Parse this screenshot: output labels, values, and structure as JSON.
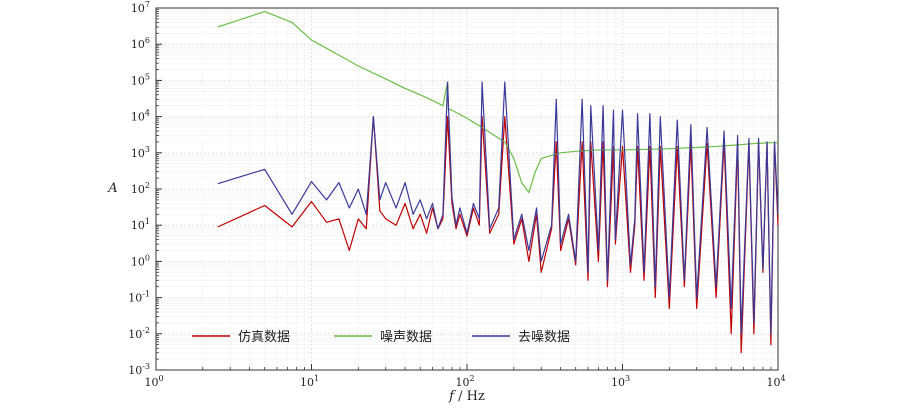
{
  "chart_data": {
    "type": "line",
    "title": "",
    "xlabel": "f",
    "xlabel_unit": " / Hz",
    "ylabel": "A",
    "x_scale": "log",
    "y_scale": "log",
    "xlim": [
      1,
      10000
    ],
    "ylim": [
      0.001,
      10000000
    ],
    "grid": true,
    "legend_position": "bottom-left",
    "x_ticks": [
      {
        "value": 1,
        "base": "10",
        "exp": "0"
      },
      {
        "value": 10,
        "base": "10",
        "exp": "1"
      },
      {
        "value": 100,
        "base": "10",
        "exp": "2"
      },
      {
        "value": 1000,
        "base": "10",
        "exp": "3"
      },
      {
        "value": 10000,
        "base": "10",
        "exp": "4"
      }
    ],
    "y_ticks": [
      {
        "value": 0.001,
        "base": "10",
        "exp": "-3"
      },
      {
        "value": 0.01,
        "base": "10",
        "exp": "-2"
      },
      {
        "value": 0.1,
        "base": "10",
        "exp": "-1"
      },
      {
        "value": 1,
        "base": "10",
        "exp": "0"
      },
      {
        "value": 10,
        "base": "10",
        "exp": "1"
      },
      {
        "value": 100,
        "base": "10",
        "exp": "2"
      },
      {
        "value": 1000,
        "base": "10",
        "exp": "3"
      },
      {
        "value": 10000,
        "base": "10",
        "exp": "4"
      },
      {
        "value": 100000,
        "base": "10",
        "exp": "5"
      },
      {
        "value": 1000000,
        "base": "10",
        "exp": "6"
      },
      {
        "value": 10000000,
        "base": "10",
        "exp": "7"
      }
    ],
    "series": [
      {
        "name": "仿真数据",
        "color": "#c00000",
        "x": [
          2.5,
          5,
          7.5,
          10,
          12.5,
          15,
          17.5,
          20,
          22.5,
          25,
          27.5,
          30,
          35,
          40,
          45,
          50,
          55,
          60,
          65,
          70,
          75,
          80,
          85,
          90,
          100,
          110,
          120,
          125,
          140,
          160,
          175,
          200,
          225,
          250,
          280,
          300,
          350,
          375,
          400,
          450,
          500,
          550,
          600,
          625,
          700,
          750,
          800,
          875,
          900,
          1000,
          1125,
          1200,
          1250,
          1375,
          1500,
          1625,
          1750,
          2000,
          2250,
          2500,
          2750,
          3000,
          3500,
          4000,
          4500,
          5000,
          5500,
          5800,
          6500,
          7000,
          7500,
          8000,
          8500,
          9000,
          9500,
          10000
        ],
        "y": [
          9,
          35,
          9,
          45,
          12,
          15,
          2,
          15,
          8,
          10000,
          25,
          15,
          10,
          40,
          8,
          20,
          6,
          30,
          8,
          15,
          10000,
          40,
          8,
          20,
          5,
          30,
          10,
          10000,
          6,
          20,
          10000,
          3,
          15,
          1,
          20,
          0.5,
          8,
          2000,
          2,
          15,
          0.8,
          2000,
          0.3,
          2000,
          1,
          2000,
          0.2,
          1500,
          3,
          1500,
          0.5,
          10,
          1500,
          0.3,
          1500,
          0.1,
          1500,
          0.05,
          1500,
          0.2,
          1800,
          0.05,
          1800,
          0.1,
          2000,
          0.01,
          1800,
          0.003,
          1800,
          0.01,
          2000,
          0.5,
          1800,
          0.005,
          1800,
          10
        ]
      },
      {
        "name": "噪声数据",
        "color": "#6abf45",
        "x": [
          2.5,
          5,
          7.5,
          10,
          15,
          20,
          30,
          40,
          50,
          60,
          70,
          75,
          76,
          80,
          100,
          125,
          150,
          175,
          200,
          225,
          250,
          275,
          300,
          400,
          500,
          700,
          1000,
          1500,
          2000,
          3000,
          4000,
          5000,
          6000,
          7000,
          8000,
          9000,
          10000
        ],
        "y": [
          3000000,
          8000000,
          4000000,
          1300000,
          500000,
          250000,
          110000,
          60000,
          40000,
          28000,
          20000,
          90000,
          16000,
          15000,
          9000,
          5000,
          3000,
          2000,
          700,
          150,
          80,
          300,
          700,
          1000,
          1100,
          1200,
          1200,
          1250,
          1300,
          1400,
          1500,
          1600,
          1700,
          1800,
          1850,
          1900,
          1900
        ]
      },
      {
        "name": "去噪数据",
        "color": "#3a3a9a",
        "x": [
          2.5,
          5,
          7.5,
          10,
          12.5,
          15,
          17.5,
          20,
          22.5,
          25,
          27.5,
          30,
          35,
          40,
          45,
          50,
          55,
          60,
          65,
          70,
          75,
          80,
          85,
          90,
          100,
          110,
          120,
          125,
          140,
          160,
          175,
          200,
          225,
          250,
          280,
          300,
          350,
          375,
          400,
          450,
          500,
          550,
          600,
          625,
          700,
          750,
          800,
          875,
          900,
          1000,
          1125,
          1200,
          1250,
          1375,
          1500,
          1625,
          1750,
          2000,
          2250,
          2500,
          2750,
          3000,
          3500,
          4000,
          4500,
          5000,
          5500,
          5800,
          6500,
          7000,
          7500,
          8000,
          8500,
          9000,
          9500,
          10000
        ],
        "y": [
          140,
          350,
          20,
          160,
          50,
          150,
          30,
          100,
          20,
          10000,
          50,
          150,
          30,
          150,
          20,
          50,
          15,
          40,
          8,
          20,
          90000,
          60,
          10,
          30,
          6,
          40,
          15,
          90000,
          8,
          30,
          90000,
          4,
          20,
          2,
          30,
          1,
          10,
          30000,
          3,
          20,
          1,
          30000,
          0.5,
          20000,
          2,
          20000,
          0.3,
          15000,
          4,
          15000,
          0.8,
          15,
          12000,
          0.5,
          12000,
          0.2,
          10000,
          0.1,
          8000,
          0.3,
          6000,
          0.1,
          5000,
          0.2,
          4000,
          0.05,
          3000,
          0.01,
          2500,
          0.02,
          2500,
          0.6,
          2000,
          0.01,
          2000,
          20
        ]
      }
    ]
  }
}
